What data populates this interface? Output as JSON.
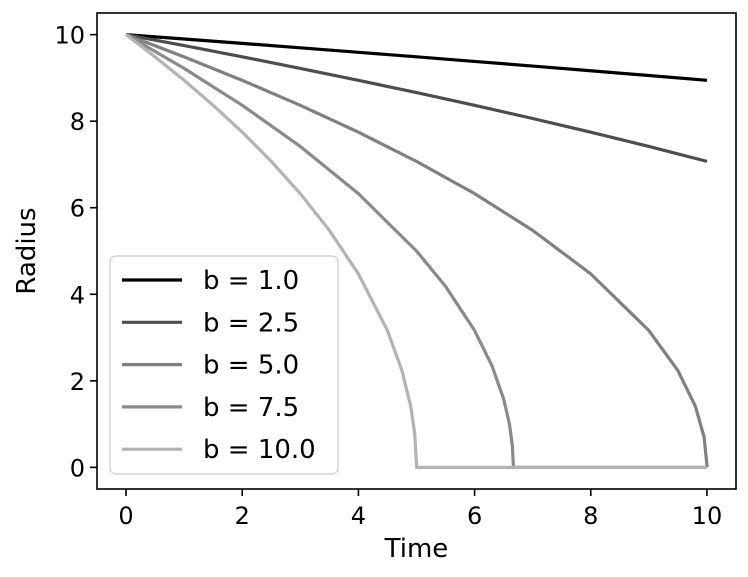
{
  "chart_data": {
    "type": "line",
    "title": "",
    "xlabel": "Time",
    "ylabel": "Radius",
    "xlim": [
      -0.5,
      10.5
    ],
    "ylim": [
      -0.5,
      10.5
    ],
    "xticks": [
      0,
      2,
      4,
      6,
      8,
      10
    ],
    "yticks": [
      0,
      2,
      4,
      6,
      8,
      10
    ],
    "grid": false,
    "legend_position": "lower-left",
    "series": [
      {
        "name": "b = 1.0",
        "color": "#000000",
        "x": [
          0,
          1,
          2,
          3,
          4,
          5,
          6,
          7,
          8,
          9,
          10
        ],
        "y": [
          10,
          9.899,
          9.798,
          9.695,
          9.592,
          9.487,
          9.381,
          9.274,
          9.165,
          9.055,
          8.944
        ]
      },
      {
        "name": "b = 2.5",
        "color": "#4d4d4d",
        "x": [
          0,
          1,
          2,
          3,
          4,
          5,
          6,
          7,
          8,
          9,
          10
        ],
        "y": [
          10,
          9.747,
          9.487,
          9.22,
          8.944,
          8.66,
          8.367,
          8.062,
          7.746,
          7.416,
          7.071
        ]
      },
      {
        "name": "b = 5.0",
        "color": "#808080",
        "x": [
          0,
          1,
          2,
          3,
          4,
          5,
          6,
          7,
          8,
          9,
          9.5,
          9.8,
          9.95,
          10,
          10
        ],
        "y": [
          10,
          9.487,
          8.944,
          8.367,
          7.746,
          7.071,
          6.325,
          5.477,
          4.472,
          3.162,
          2.236,
          1.414,
          0.707,
          0.05,
          0
        ]
      },
      {
        "name": "b = 7.5",
        "color": "#8a8a8a",
        "x": [
          0,
          1,
          2,
          3,
          4,
          5,
          5.5,
          6,
          6.3,
          6.5,
          6.6,
          6.65,
          6.667,
          6.667,
          10
        ],
        "y": [
          10,
          9.22,
          8.367,
          7.416,
          6.325,
          5.0,
          4.183,
          3.162,
          2.345,
          1.581,
          1.0,
          0.5,
          0.05,
          0,
          0
        ]
      },
      {
        "name": "b = 10.0",
        "color": "#b3b3b3",
        "x": [
          0,
          0.5,
          1,
          1.5,
          2,
          2.5,
          3,
          3.5,
          4,
          4.5,
          4.75,
          4.9,
          4.97,
          5,
          5,
          10
        ],
        "y": [
          10,
          9.487,
          8.944,
          8.367,
          7.746,
          7.071,
          6.325,
          5.477,
          4.472,
          3.162,
          2.236,
          1.414,
          0.775,
          0.05,
          0,
          0
        ]
      }
    ]
  }
}
